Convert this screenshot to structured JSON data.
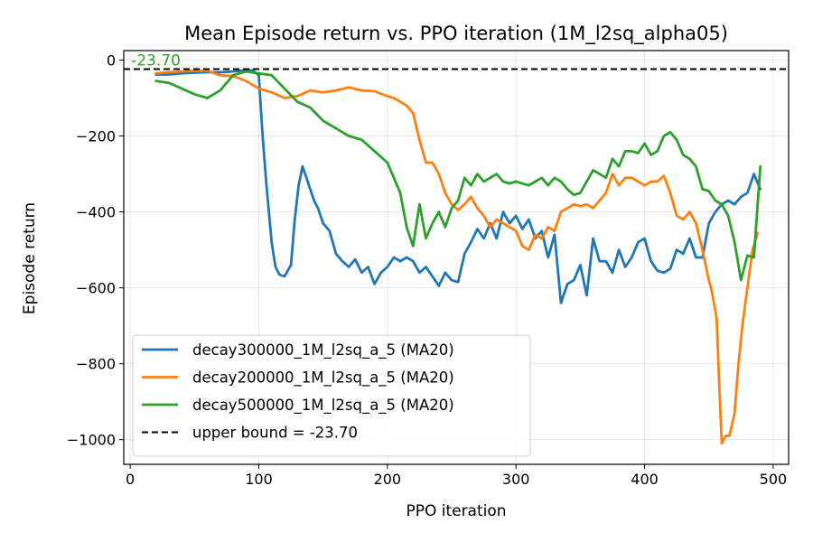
{
  "chart_data": {
    "type": "line",
    "title": "Mean Episode return vs. PPO iteration (1M_l2sq_alpha05)",
    "xlabel": "PPO iteration",
    "ylabel": "Episode return",
    "xlim": [
      -5,
      512
    ],
    "ylim": [
      -1065,
      25
    ],
    "xticks": [
      0,
      100,
      200,
      300,
      400,
      500
    ],
    "yticks": [
      0,
      -200,
      -400,
      -600,
      -800,
      -1000
    ],
    "xtick_labels": [
      "0",
      "100",
      "200",
      "300",
      "400",
      "500"
    ],
    "ytick_labels": [
      "0",
      "−200",
      "−400",
      "−600",
      "−800",
      "−1000"
    ],
    "grid": true,
    "legend_position": "lower-left",
    "series": [
      {
        "name": "decay300000_1M_l2sq_a_5 (MA20)",
        "color": "#1f77b4",
        "x": [
          20,
          30,
          40,
          50,
          60,
          70,
          80,
          90,
          95,
          100,
          103,
          106,
          110,
          113,
          116,
          120,
          125,
          128,
          131,
          134,
          137,
          140,
          143,
          146,
          150,
          155,
          160,
          165,
          170,
          175,
          180,
          185,
          190,
          195,
          200,
          205,
          210,
          215,
          220,
          225,
          230,
          235,
          240,
          245,
          250,
          255,
          260,
          265,
          270,
          275,
          280,
          285,
          290,
          295,
          300,
          305,
          310,
          315,
          320,
          325,
          330,
          335,
          340,
          345,
          350,
          355,
          360,
          365,
          370,
          375,
          380,
          385,
          390,
          395,
          400,
          405,
          410,
          415,
          420,
          425,
          430,
          435,
          440,
          445,
          450,
          455,
          460,
          465,
          470,
          475,
          480,
          485,
          490
        ],
        "y": [
          -38,
          -38,
          -35,
          -33,
          -32,
          -32,
          -30,
          -27,
          -27,
          -40,
          -200,
          -330,
          -480,
          -545,
          -565,
          -570,
          -540,
          -420,
          -330,
          -280,
          -310,
          -340,
          -370,
          -390,
          -430,
          -450,
          -510,
          -530,
          -545,
          -525,
          -560,
          -545,
          -590,
          -560,
          -545,
          -520,
          -530,
          -520,
          -530,
          -560,
          -545,
          -570,
          -595,
          -560,
          -580,
          -585,
          -510,
          -480,
          -445,
          -470,
          -430,
          -470,
          -400,
          -430,
          -410,
          -445,
          -420,
          -470,
          -450,
          -520,
          -460,
          -640,
          -590,
          -580,
          -540,
          -620,
          -470,
          -530,
          -530,
          -560,
          -500,
          -545,
          -520,
          -480,
          -470,
          -530,
          -555,
          -560,
          -550,
          -500,
          -510,
          -470,
          -520,
          -520,
          -430,
          -400,
          -380,
          -370,
          -380,
          -360,
          -350,
          -300,
          -340
        ]
      },
      {
        "name": "decay200000_1M_l2sq_a_5 (MA20)",
        "color": "#ff7f0e",
        "x": [
          20,
          30,
          40,
          50,
          60,
          70,
          80,
          90,
          100,
          110,
          120,
          130,
          140,
          150,
          160,
          170,
          180,
          190,
          200,
          205,
          210,
          215,
          220,
          225,
          230,
          235,
          240,
          245,
          250,
          255,
          260,
          265,
          270,
          275,
          280,
          285,
          290,
          295,
          300,
          305,
          310,
          315,
          320,
          325,
          330,
          335,
          340,
          345,
          350,
          355,
          360,
          365,
          370,
          375,
          380,
          385,
          390,
          395,
          400,
          405,
          410,
          415,
          420,
          425,
          430,
          435,
          440,
          445,
          450,
          452,
          454,
          456,
          458,
          460,
          463,
          466,
          470,
          473,
          476,
          480,
          484,
          488
        ],
        "y": [
          -35,
          -32,
          -30,
          -28,
          -28,
          -40,
          -42,
          -55,
          -75,
          -85,
          -100,
          -95,
          -80,
          -85,
          -80,
          -72,
          -80,
          -82,
          -95,
          -100,
          -110,
          -120,
          -140,
          -210,
          -270,
          -270,
          -300,
          -350,
          -380,
          -395,
          -380,
          -360,
          -390,
          -410,
          -440,
          -420,
          -430,
          -440,
          -450,
          -490,
          -500,
          -460,
          -470,
          -440,
          -450,
          -400,
          -390,
          -380,
          -385,
          -380,
          -390,
          -370,
          -350,
          -300,
          -330,
          -310,
          -310,
          -320,
          -330,
          -320,
          -320,
          -305,
          -350,
          -410,
          -420,
          -400,
          -430,
          -500,
          -580,
          -605,
          -640,
          -680,
          -850,
          -1010,
          -990,
          -990,
          -930,
          -800,
          -700,
          -600,
          -500,
          -455
        ]
      },
      {
        "name": "decay500000_1M_l2sq_a_5 (MA20)",
        "color": "#2ca02c",
        "x": [
          20,
          30,
          40,
          50,
          60,
          70,
          80,
          90,
          100,
          110,
          120,
          130,
          140,
          150,
          160,
          170,
          180,
          190,
          200,
          205,
          210,
          215,
          220,
          225,
          230,
          235,
          240,
          245,
          250,
          255,
          260,
          265,
          270,
          275,
          280,
          285,
          290,
          295,
          300,
          305,
          310,
          315,
          320,
          325,
          330,
          335,
          340,
          345,
          350,
          355,
          360,
          365,
          370,
          375,
          380,
          385,
          390,
          395,
          400,
          405,
          410,
          415,
          420,
          425,
          430,
          435,
          440,
          445,
          450,
          455,
          460,
          465,
          470,
          475,
          480,
          485,
          490
        ],
        "y": [
          -55,
          -60,
          -75,
          -90,
          -100,
          -80,
          -40,
          -30,
          -35,
          -40,
          -75,
          -110,
          -125,
          -160,
          -180,
          -200,
          -210,
          -240,
          -270,
          -310,
          -350,
          -440,
          -490,
          -380,
          -470,
          -430,
          -400,
          -440,
          -390,
          -370,
          -310,
          -330,
          -300,
          -320,
          -310,
          -300,
          -320,
          -325,
          -320,
          -325,
          -330,
          -320,
          -310,
          -330,
          -310,
          -320,
          -340,
          -355,
          -350,
          -320,
          -290,
          -300,
          -310,
          -260,
          -280,
          -240,
          -240,
          -245,
          -220,
          -250,
          -240,
          -200,
          -190,
          -210,
          -250,
          -260,
          -280,
          -340,
          -345,
          -370,
          -380,
          -410,
          -480,
          -580,
          -515,
          -520,
          -280
        ]
      },
      {
        "name": "upper bound = -23.70",
        "color": "#000000",
        "dashed": true,
        "constant": -23.7
      }
    ],
    "annotations": [
      {
        "text": "-23.70",
        "x": 0,
        "y": -23.7,
        "color": "#2ca02c"
      }
    ]
  }
}
